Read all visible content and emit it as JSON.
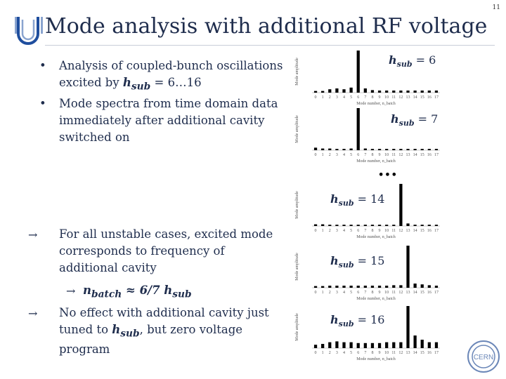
{
  "page_number": "11",
  "title": "Mode analysis with additional RF voltage",
  "bullets": [
    {
      "pre": "Analysis of coupled-bunch oscillations excited by ",
      "var": "h",
      "sub": "sub",
      "post": " = 6…16"
    },
    {
      "pre": "Mode spectra from time domain data immediately after additional cavity switched on",
      "var": "",
      "sub": "",
      "post": ""
    }
  ],
  "conclusions": {
    "first": "For all unstable cases, excited mode corresponds to frequency of additional cavity",
    "sub_var1": "n",
    "sub_sub1": "batch",
    "sub_mid": " ≈ 6/7 ",
    "sub_var2": "h",
    "sub_sub2": "sub",
    "second_pre": "No effect with additional cavity just tuned to ",
    "second_var": "h",
    "second_sub": "sub",
    "second_post": ", but zero voltage program"
  },
  "ellipsis": "•••",
  "colors": {
    "title": "#1f2d4d",
    "bars": "#000000",
    "text": "#1f2d4d"
  },
  "icons": [
    "university-logo-icon",
    "cern-logo-icon"
  ],
  "cern_text": "CERN",
  "chart_data": [
    {
      "type": "bar",
      "ylabel": "Mode amplitude",
      "xlabel": "Mode number, n_batch",
      "label_var": "h",
      "label_sub": "sub",
      "label_val": "= 6",
      "categories": [
        "0",
        "1",
        "2",
        "3",
        "4",
        "5",
        "6",
        "7",
        "8",
        "9",
        "10",
        "11",
        "12",
        "13",
        "14",
        "15",
        "16",
        "17"
      ],
      "values": [
        0.04,
        0.04,
        0.08,
        0.1,
        0.08,
        0.12,
        1.0,
        0.1,
        0.06,
        0.05,
        0.05,
        0.05,
        0.05,
        0.05,
        0.05,
        0.05,
        0.05,
        0.05
      ]
    },
    {
      "type": "bar",
      "ylabel": "Mode amplitude",
      "xlabel": "Mode number, n_batch",
      "label_var": "h",
      "label_sub": "sub",
      "label_val": "= 7",
      "categories": [
        "0",
        "1",
        "2",
        "3",
        "4",
        "5",
        "6",
        "7",
        "8",
        "9",
        "10",
        "11",
        "12",
        "13",
        "14",
        "15",
        "16",
        "17"
      ],
      "values": [
        0.06,
        0.04,
        0.04,
        0.03,
        0.03,
        0.04,
        1.0,
        0.04,
        0.03,
        0.03,
        0.03,
        0.03,
        0.03,
        0.03,
        0.03,
        0.03,
        0.03,
        0.03
      ]
    },
    {
      "type": "bar",
      "ylabel": "Mode amplitude",
      "xlabel": "Mode number, n_batch",
      "label_var": "h",
      "label_sub": "sub",
      "label_val": "= 14",
      "categories": [
        "0",
        "1",
        "2",
        "3",
        "4",
        "5",
        "6",
        "7",
        "8",
        "9",
        "10",
        "11",
        "12",
        "13",
        "14",
        "15",
        "16",
        "17"
      ],
      "values": [
        0.04,
        0.04,
        0.03,
        0.03,
        0.03,
        0.03,
        0.03,
        0.03,
        0.03,
        0.03,
        0.03,
        0.03,
        1.0,
        0.06,
        0.03,
        0.03,
        0.03,
        0.03
      ]
    },
    {
      "type": "bar",
      "ylabel": "Mode amplitude",
      "xlabel": "Mode number, n_batch",
      "label_var": "h",
      "label_sub": "sub",
      "label_val": "= 15",
      "categories": [
        "0",
        "1",
        "2",
        "3",
        "4",
        "5",
        "6",
        "7",
        "8",
        "9",
        "10",
        "11",
        "12",
        "13",
        "14",
        "15",
        "16",
        "17"
      ],
      "values": [
        0.04,
        0.04,
        0.05,
        0.05,
        0.05,
        0.05,
        0.05,
        0.05,
        0.05,
        0.05,
        0.05,
        0.06,
        0.06,
        1.0,
        0.1,
        0.08,
        0.06,
        0.05
      ]
    },
    {
      "type": "bar",
      "ylabel": "Mode amplitude",
      "xlabel": "Mode number, n_batch",
      "label_var": "h",
      "label_sub": "sub",
      "label_val": "= 16",
      "categories": [
        "0",
        "1",
        "2",
        "3",
        "4",
        "5",
        "6",
        "7",
        "8",
        "9",
        "10",
        "11",
        "12",
        "13",
        "14",
        "15",
        "16",
        "17"
      ],
      "values": [
        0.08,
        0.1,
        0.14,
        0.16,
        0.14,
        0.14,
        0.12,
        0.12,
        0.12,
        0.12,
        0.14,
        0.14,
        0.14,
        1.0,
        0.3,
        0.2,
        0.14,
        0.14
      ]
    }
  ]
}
